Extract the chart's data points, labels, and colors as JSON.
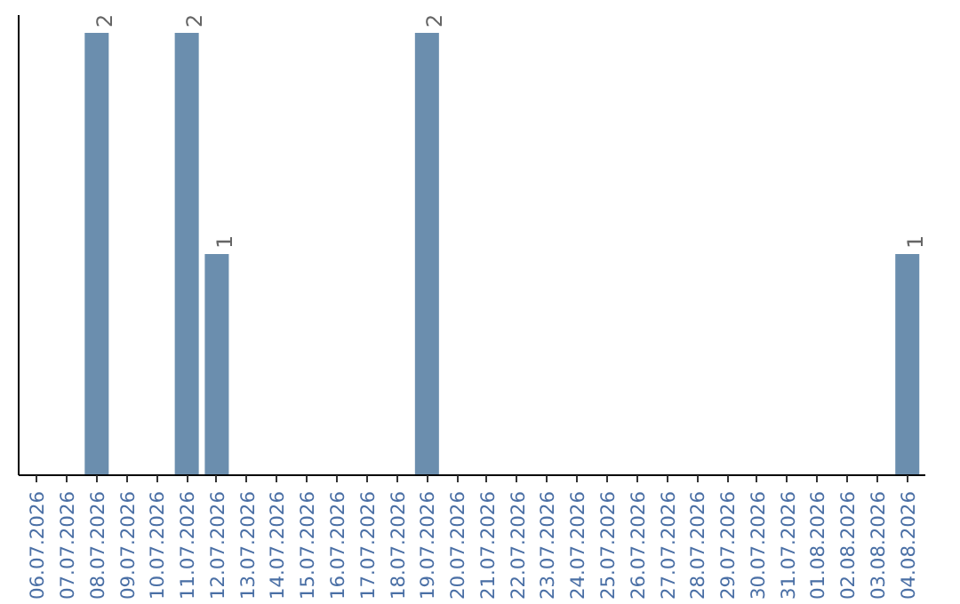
{
  "chart_data": {
    "type": "bar",
    "categories": [
      "06.07.2026",
      "07.07.2026",
      "08.07.2026",
      "09.07.2026",
      "10.07.2026",
      "11.07.2026",
      "12.07.2026",
      "13.07.2026",
      "14.07.2026",
      "15.07.2026",
      "16.07.2026",
      "17.07.2026",
      "18.07.2026",
      "19.07.2026",
      "20.07.2026",
      "21.07.2026",
      "22.07.2026",
      "23.07.2026",
      "24.07.2026",
      "25.07.2026",
      "26.07.2026",
      "27.07.2026",
      "28.07.2026",
      "29.07.2026",
      "30.07.2026",
      "31.07.2026",
      "01.08.2026",
      "02.08.2026",
      "03.08.2026",
      "04.08.2026"
    ],
    "values": [
      0,
      0,
      2,
      0,
      0,
      2,
      1,
      0,
      0,
      0,
      0,
      0,
      0,
      2,
      0,
      0,
      0,
      0,
      0,
      0,
      0,
      0,
      0,
      0,
      0,
      0,
      0,
      0,
      0,
      1
    ],
    "value_labels": [
      null,
      null,
      "2",
      null,
      null,
      "2",
      "1",
      null,
      null,
      null,
      null,
      null,
      null,
      "2",
      null,
      null,
      null,
      null,
      null,
      null,
      null,
      null,
      null,
      null,
      null,
      null,
      null,
      null,
      null,
      "1"
    ],
    "color": "#6b8eae",
    "grid": false,
    "tick_labels": "x"
  }
}
